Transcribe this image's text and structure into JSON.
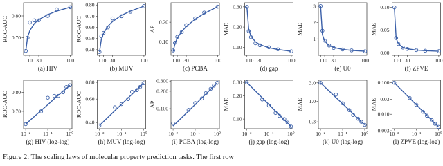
{
  "caption": "Figure 2: The scaling laws of molecular property prediction tasks. The first row",
  "chart_data": [
    {
      "type": "scatter",
      "title": "(a) HIV",
      "ylabel": "ROC-AUC",
      "color": "#3a5fa8",
      "xscale": "linear",
      "yscale": "linear",
      "x": [
        1,
        5,
        10,
        20,
        30,
        50,
        70,
        100
      ],
      "values": [
        0.64,
        0.7,
        0.77,
        0.78,
        0.78,
        0.8,
        0.83,
        0.84
      ],
      "fit": [
        0.64,
        0.704,
        0.733,
        0.765,
        0.783,
        0.806,
        0.822,
        0.84
      ],
      "xlim": [
        -4,
        104
      ],
      "ylim": [
        0.62,
        0.86
      ],
      "xticks": [
        1,
        10,
        30,
        100
      ],
      "yticks": [
        {
          "value": 0.7,
          "label": "0.70"
        },
        {
          "value": 0.8,
          "label": "0.80"
        }
      ]
    },
    {
      "type": "scatter",
      "title": "(b) MUV",
      "ylabel": "ROC-AUC",
      "color": "#3a5fa8",
      "xscale": "linear",
      "yscale": "linear",
      "x": [
        1,
        5,
        10,
        20,
        30,
        50,
        70,
        100
      ],
      "values": [
        0.38,
        0.52,
        0.55,
        0.6,
        0.68,
        0.7,
        0.74,
        0.79
      ],
      "fit": [
        0.38,
        0.491,
        0.548,
        0.612,
        0.652,
        0.708,
        0.746,
        0.79
      ],
      "xlim": [
        -4,
        104
      ],
      "ylim": [
        0.35,
        0.82
      ],
      "xticks": [
        1,
        10,
        30,
        100
      ],
      "yticks": [
        {
          "value": 0.4,
          "label": "0.40"
        },
        {
          "value": 0.5,
          "label": "0.50"
        },
        {
          "value": 0.6,
          "label": "0.60"
        },
        {
          "value": 0.7,
          "label": "0.70"
        },
        {
          "value": 0.8,
          "label": "0.80"
        }
      ]
    },
    {
      "type": "scatter",
      "title": "(c) PCBA",
      "ylabel": "AP",
      "color": "#3a5fa8",
      "xscale": "linear",
      "yscale": "linear",
      "x": [
        1,
        5,
        10,
        20,
        30,
        50,
        70,
        100
      ],
      "values": [
        0.055,
        0.095,
        0.125,
        0.15,
        0.185,
        0.22,
        0.25,
        0.28
      ],
      "fit": [
        0.05,
        0.091,
        0.118,
        0.153,
        0.178,
        0.216,
        0.245,
        0.28
      ],
      "xlim": [
        -4,
        104
      ],
      "ylim": [
        0.03,
        0.3
      ],
      "xticks": [
        1,
        10,
        30,
        100
      ],
      "yticks": [
        {
          "value": 0.1,
          "label": "0.10"
        },
        {
          "value": 0.2,
          "label": "0.20"
        }
      ]
    },
    {
      "type": "scatter",
      "title": "(d) gap",
      "ylabel": "MAE",
      "color": "#3a5fa8",
      "xscale": "linear",
      "yscale": "linear",
      "x": [
        1,
        5,
        10,
        20,
        30,
        50,
        70,
        100
      ],
      "values": [
        0.3,
        0.18,
        0.15,
        0.12,
        0.11,
        0.1,
        0.09,
        0.08
      ],
      "fit": [
        0.3,
        0.189,
        0.155,
        0.127,
        0.113,
        0.098,
        0.089,
        0.08
      ],
      "xlim": [
        -4,
        104
      ],
      "ylim": [
        0.06,
        0.32
      ],
      "xticks": [
        1,
        10,
        30,
        100
      ],
      "yticks": [
        {
          "value": 0.1,
          "label": "0.10"
        },
        {
          "value": 0.2,
          "label": "0.20"
        },
        {
          "value": 0.3,
          "label": "0.30"
        }
      ]
    },
    {
      "type": "scatter",
      "title": "(e) U0",
      "ylabel": "MAE",
      "color": "#3a5fa8",
      "xscale": "linear",
      "yscale": "linear",
      "x": [
        1,
        5,
        10,
        20,
        30,
        50,
        70,
        100
      ],
      "values": [
        3.0,
        1.5,
        0.9,
        0.6,
        0.45,
        0.36,
        0.3,
        0.25
      ],
      "fit": [
        3.0,
        1.26,
        0.87,
        0.6,
        0.48,
        0.36,
        0.3,
        0.25
      ],
      "xlim": [
        -4,
        104
      ],
      "ylim": [
        0,
        3.2
      ],
      "xticks": [
        1,
        10,
        30,
        100
      ],
      "yticks": [
        1,
        2,
        3
      ]
    },
    {
      "type": "scatter",
      "title": "(f) ZPVE",
      "ylabel": "MAE",
      "color": "#3a5fa8",
      "xscale": "linear",
      "yscale": "linear",
      "x": [
        1,
        5,
        10,
        20,
        30,
        50,
        70,
        100
      ],
      "values": [
        0.1,
        0.033,
        0.02,
        0.012,
        0.009,
        0.0065,
        0.005,
        0.004
      ],
      "fit": [
        0.1,
        0.0325,
        0.02,
        0.0123,
        0.0093,
        0.0065,
        0.0051,
        0.004
      ],
      "xlim": [
        -4,
        104
      ],
      "ylim": [
        -0.005,
        0.11
      ],
      "xticks": [
        1,
        10,
        30,
        100
      ],
      "yticks": [
        {
          "value": 0,
          "label": "0.00"
        },
        {
          "value": 0.05,
          "label": "0.05"
        },
        {
          "value": 0.1,
          "label": "0.10"
        }
      ]
    },
    {
      "type": "scatter",
      "title": "(g) HIV (log-log)",
      "ylabel": "ROC-AUC",
      "color": "#3a5fa8",
      "xscale": "log",
      "yscale": "log",
      "x": [
        0.01,
        0.05,
        0.1,
        0.2,
        0.3,
        0.5,
        0.7,
        1
      ],
      "values": [
        0.64,
        0.7,
        0.77,
        0.78,
        0.78,
        0.8,
        0.83,
        0.84
      ],
      "fit": [
        0.64,
        0.704,
        0.733,
        0.765,
        0.783,
        0.806,
        0.822,
        0.84
      ],
      "xlim": [
        0.008,
        1.25
      ],
      "ylim": [
        0.62,
        0.87
      ],
      "xticks": [
        {
          "value": 0.01,
          "label": "10⁻²"
        },
        {
          "value": 0.1,
          "label": "10⁻¹"
        },
        {
          "value": 1,
          "label": "10⁰"
        }
      ],
      "yticks": [
        {
          "value": 0.7,
          "label": "0.70"
        },
        {
          "value": 0.8,
          "label": "0.80"
        }
      ]
    },
    {
      "type": "scatter",
      "title": "(h) MUV (log-log)",
      "ylabel": "ROC-AUC",
      "color": "#3a5fa8",
      "xscale": "log",
      "yscale": "log",
      "x": [
        0.01,
        0.05,
        0.1,
        0.2,
        0.3,
        0.5,
        0.7,
        1
      ],
      "values": [
        0.38,
        0.52,
        0.55,
        0.6,
        0.68,
        0.7,
        0.74,
        0.79
      ],
      "fit": [
        0.38,
        0.491,
        0.548,
        0.612,
        0.652,
        0.708,
        0.746,
        0.79
      ],
      "xlim": [
        0.008,
        1.25
      ],
      "ylim": [
        0.36,
        0.83
      ],
      "xticks": [
        {
          "value": 0.01,
          "label": "10⁻²"
        },
        {
          "value": 0.1,
          "label": "10⁻¹"
        },
        {
          "value": 1,
          "label": "10⁰"
        }
      ],
      "yticks": [
        {
          "value": 0.4,
          "label": "0.40"
        },
        {
          "value": 0.6,
          "label": "0.60"
        },
        {
          "value": 0.8,
          "label": "0.80"
        }
      ]
    },
    {
      "type": "scatter",
      "title": "(i) PCBA (log-log)",
      "ylabel": "AP",
      "color": "#3a5fa8",
      "xscale": "log",
      "yscale": "log",
      "x": [
        0.01,
        0.05,
        0.1,
        0.2,
        0.3,
        0.5,
        0.7,
        1
      ],
      "values": [
        0.055,
        0.095,
        0.125,
        0.15,
        0.185,
        0.22,
        0.25,
        0.28
      ],
      "fit": [
        0.05,
        0.091,
        0.118,
        0.153,
        0.178,
        0.216,
        0.245,
        0.28
      ],
      "xlim": [
        0.008,
        1.25
      ],
      "ylim": [
        0.045,
        0.31
      ],
      "xticks": [
        {
          "value": 0.01,
          "label": "10⁻²"
        },
        {
          "value": 0.1,
          "label": "10⁻¹"
        },
        {
          "value": 1,
          "label": "10⁰"
        }
      ],
      "yticks": [
        {
          "value": 0.1,
          "label": "0.100"
        },
        {
          "value": 0.2,
          "label": "0.200"
        },
        {
          "value": 0.3,
          "label": "0.300"
        }
      ]
    },
    {
      "type": "scatter",
      "title": "(j) gap (log-log)",
      "ylabel": "MAE",
      "color": "#3a5fa8",
      "xscale": "log",
      "yscale": "log",
      "x": [
        0.01,
        0.05,
        0.1,
        0.2,
        0.3,
        0.5,
        0.7,
        1
      ],
      "values": [
        0.3,
        0.18,
        0.15,
        0.12,
        0.11,
        0.1,
        0.09,
        0.08
      ],
      "fit": [
        0.3,
        0.189,
        0.155,
        0.127,
        0.113,
        0.098,
        0.089,
        0.08
      ],
      "xlim": [
        0.008,
        1.25
      ],
      "ylim": [
        0.075,
        0.32
      ],
      "xticks": [
        {
          "value": 0.01,
          "label": "10⁻²"
        },
        {
          "value": 0.1,
          "label": "10⁻¹"
        },
        {
          "value": 1,
          "label": "10⁰"
        }
      ],
      "yticks": [
        {
          "value": 0.1,
          "label": "0.10"
        },
        {
          "value": 0.2,
          "label": "0.20"
        },
        {
          "value": 0.3,
          "label": "0.30"
        }
      ]
    },
    {
      "type": "scatter",
      "title": "(k) U0 (log-log)",
      "ylabel": "MAE",
      "color": "#3a5fa8",
      "xscale": "log",
      "yscale": "log",
      "x": [
        0.01,
        0.05,
        0.1,
        0.2,
        0.3,
        0.5,
        0.7,
        1
      ],
      "values": [
        3.0,
        1.5,
        0.9,
        0.6,
        0.45,
        0.36,
        0.3,
        0.25
      ],
      "fit": [
        3.0,
        1.26,
        0.87,
        0.6,
        0.48,
        0.36,
        0.3,
        0.25
      ],
      "xlim": [
        0.008,
        1.25
      ],
      "ylim": [
        0.2,
        3.5
      ],
      "xticks": [
        {
          "value": 0.01,
          "label": "10⁻²"
        },
        {
          "value": 0.1,
          "label": "10⁻¹"
        },
        {
          "value": 1,
          "label": "10⁰"
        }
      ],
      "yticks": [
        0.3,
        {
          "value": 1,
          "label": "1.0"
        },
        {
          "value": 3,
          "label": "3.0"
        }
      ]
    },
    {
      "type": "scatter",
      "title": "(l) ZPVE (log-log)",
      "ylabel": "MAE",
      "color": "#3a5fa8",
      "xscale": "log",
      "yscale": "log",
      "x": [
        0.01,
        0.05,
        0.1,
        0.2,
        0.3,
        0.5,
        0.7,
        1
      ],
      "values": [
        0.1,
        0.033,
        0.02,
        0.012,
        0.009,
        0.0065,
        0.005,
        0.004
      ],
      "fit": [
        0.1,
        0.0325,
        0.02,
        0.0123,
        0.0093,
        0.0065,
        0.0051,
        0.004
      ],
      "xlim": [
        0.008,
        1.25
      ],
      "ylim": [
        0.0035,
        0.12
      ],
      "xticks": [
        {
          "value": 0.01,
          "label": "10⁻²"
        },
        {
          "value": 0.1,
          "label": "10⁻¹"
        },
        {
          "value": 1,
          "label": "10⁰"
        }
      ],
      "yticks": [
        0.003,
        {
          "value": 0.01,
          "label": "0.010"
        },
        0.03,
        {
          "value": 0.1,
          "label": "0.100"
        }
      ]
    }
  ]
}
